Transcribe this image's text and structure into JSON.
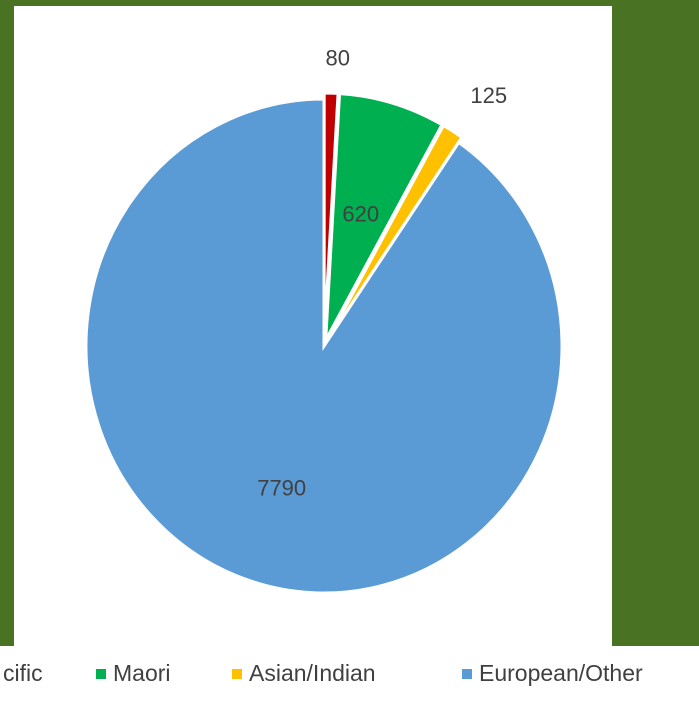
{
  "chart_data": {
    "type": "pie",
    "categories": [
      "Pacific",
      "Maori",
      "Asian/Indian",
      "European/Other"
    ],
    "values": [
      80,
      620,
      125,
      7790
    ],
    "colors": [
      "#c00000",
      "#00b050",
      "#ffc000",
      "#5b9bd5"
    ],
    "data_labels": [
      "80",
      "620",
      "125",
      "7790"
    ],
    "legend_placement": "bottom",
    "legend_labels": [
      "cific",
      "Maori",
      "Asian/Indian",
      "European/Other"
    ]
  }
}
